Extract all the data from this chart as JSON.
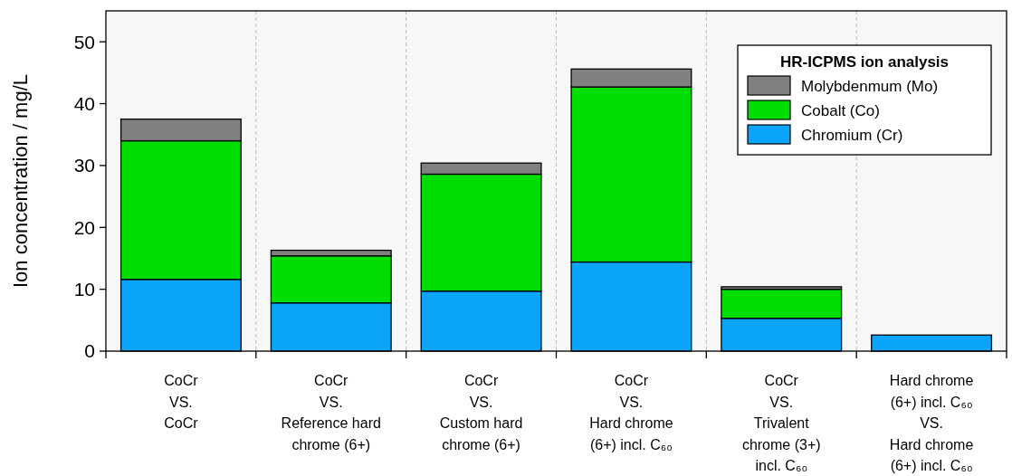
{
  "chart_data": {
    "type": "bar",
    "stacked": true,
    "ylabel": "Ion concentration / mg/L",
    "legend_title": "HR-ICPMS ion analysis",
    "legend": "top right",
    "grid": "x",
    "categories": [
      "CoCr\nVS.\nCoCr",
      "CoCr\nVS.\nReference hard\nchrome (6+)",
      "CoCr\nVS.\nCustom hard\nchrome (6+)",
      "CoCr\nVS.\nHard chrome\n(6+) incl. C₆₀",
      "CoCr\nVS.\nTrivalent\nchrome (3+)\nincl. C₆₀",
      "Hard chrome\n(6+) incl. C₆₀\nVS.\nHard chrome\n(6+) incl. C₆₀"
    ],
    "series": [
      {
        "name": "Chromium (Cr)",
        "color": "#0aa5fa",
        "values": [
          11.6,
          7.8,
          9.7,
          14.4,
          5.3,
          2.6
        ]
      },
      {
        "name": "Cobalt (Co)",
        "color": "#00dd00",
        "values": [
          22.4,
          7.6,
          18.9,
          28.3,
          4.7,
          0
        ]
      },
      {
        "name": "Molybdenmum (Mo)",
        "color": "#808080",
        "values": [
          3.5,
          0.9,
          1.8,
          2.9,
          0.4,
          0
        ]
      }
    ],
    "ylim": [
      0,
      55
    ],
    "yticks": [
      0,
      10,
      20,
      30,
      40,
      50
    ]
  }
}
